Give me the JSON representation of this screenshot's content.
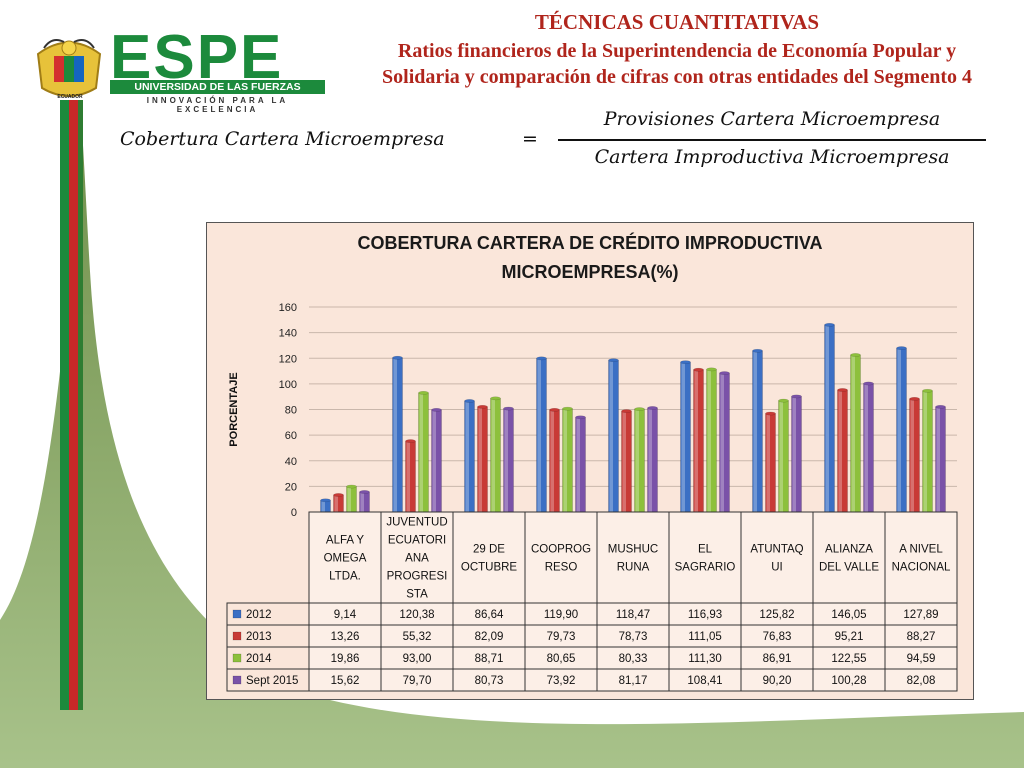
{
  "header": {
    "title_line1": "TÉCNICAS CUANTITATIVAS",
    "title_line2": "Ratios financieros  de la Superintendencia de Economía Popular y",
    "title_line3": "Solidaria y comparación de cifras con otras entidades del Segmento 4"
  },
  "logo": {
    "wordmark": "ESPE",
    "university": "UNIVERSIDAD DE LAS FUERZAS ARMADAS",
    "motto": "INNOVACIÓN PARA LA EXCELENCIA",
    "seal_text": "ECUADOR"
  },
  "formula": {
    "lhs": "Cobertura Cartera Microempresa",
    "equals": "=",
    "numerator": "Provisiones Cartera Microempresa",
    "denominator": "Cartera Improductiva Microempresa"
  },
  "colors": {
    "red_accent": "#b0251c",
    "green_accent": "#1c8a3c",
    "panel_bg": "#fae6da",
    "background_green": "#8fad6a"
  },
  "chart_data": {
    "type": "bar",
    "title_line1": "COBERTURA CARTERA DE CRÉDITO IMPRODUCTIVA",
    "title_line2": "MICROEMPRESA(%)",
    "ylabel": "PORCENTAJE",
    "xlabel": "",
    "ylim": [
      0,
      160
    ],
    "yticks": [
      0,
      20,
      40,
      60,
      80,
      100,
      120,
      140,
      160
    ],
    "grid": true,
    "legend_placement": "data-table",
    "categories": [
      "ALFA Y OMEGA LTDA.",
      "JUVENTUD ECUATORIANA PROGRESISTA",
      "29 DE OCTUBRE",
      "COOPROGRESO",
      "MUSHUC RUNA",
      "EL SAGRARIO",
      "ATUNTAQUI",
      "ALIANZA DEL VALLE",
      "A NIVEL NACIONAL"
    ],
    "category_lines": [
      [
        "ALFA Y",
        "OMEGA",
        "LTDA."
      ],
      [
        "JUVENTUD",
        "ECUATORI",
        "ANA",
        "PROGRESI",
        "STA"
      ],
      [
        "29 DE",
        "OCTUBRE"
      ],
      [
        "COOPROG",
        "RESO"
      ],
      [
        "MUSHUC",
        "RUNA"
      ],
      [
        "EL",
        "SAGRARIO"
      ],
      [
        "ATUNTAQ",
        "UI"
      ],
      [
        "ALIANZA",
        "DEL VALLE"
      ],
      [
        "A NIVEL",
        "NACIONAL"
      ]
    ],
    "series": [
      {
        "name": "2012",
        "color": "#3b6fc4",
        "values": [
          9.14,
          120.38,
          86.64,
          119.9,
          118.47,
          116.93,
          125.82,
          146.05,
          127.89
        ],
        "labels": [
          "9,14",
          "120,38",
          "86,64",
          "119,90",
          "118,47",
          "116,93",
          "125,82",
          "146,05",
          "127,89"
        ]
      },
      {
        "name": "2013",
        "color": "#c83a36",
        "values": [
          13.26,
          55.32,
          82.09,
          79.73,
          78.73,
          111.05,
          76.83,
          95.21,
          88.27
        ],
        "labels": [
          "13,26",
          "55,32",
          "82,09",
          "79,73",
          "78,73",
          "111,05",
          "76,83",
          "95,21",
          "88,27"
        ]
      },
      {
        "name": "2014",
        "color": "#8dc03c",
        "values": [
          19.86,
          93.0,
          88.71,
          80.65,
          80.33,
          111.3,
          86.91,
          122.55,
          94.59
        ],
        "labels": [
          "19,86",
          "93,00",
          "88,71",
          "80,65",
          "80,33",
          "111,30",
          "86,91",
          "122,55",
          "94,59"
        ]
      },
      {
        "name": "Sept 2015",
        "color": "#7a52a8",
        "values": [
          15.62,
          79.7,
          80.73,
          73.92,
          81.17,
          108.41,
          90.2,
          100.28,
          82.08
        ],
        "labels": [
          "15,62",
          "79,70",
          "80,73",
          "73,92",
          "81,17",
          "108,41",
          "90,20",
          "100,28",
          "82,08"
        ]
      }
    ]
  }
}
